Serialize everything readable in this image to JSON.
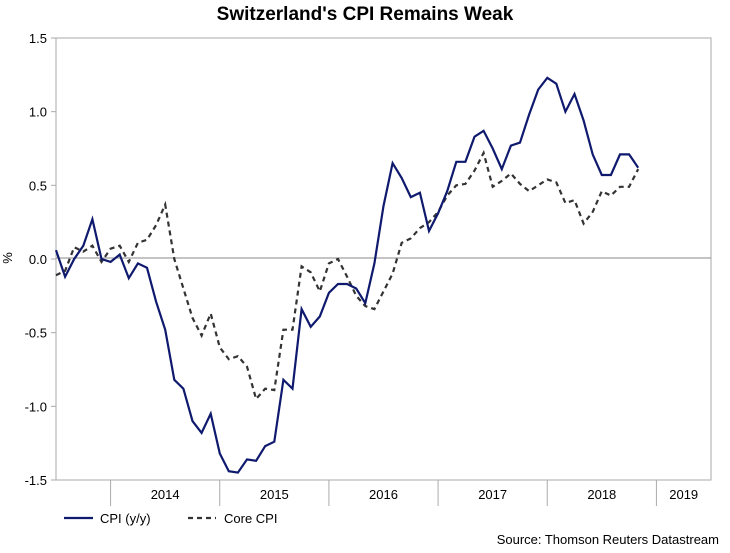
{
  "chart_data": {
    "type": "line",
    "title": "Switzerland's CPI Remains Weak",
    "ylabel": "%",
    "xlabel": "",
    "ylim": [
      -1.5,
      1.5
    ],
    "y_ticks": [
      "1.5",
      "1.0",
      "0.5",
      "0.0",
      "-0.5",
      "-1.0",
      "-1.5"
    ],
    "y_tick_values": [
      1.5,
      1.0,
      0.5,
      0.0,
      -0.5,
      -1.0,
      -1.5
    ],
    "x_labels": [
      "2014",
      "2015",
      "2016",
      "2017",
      "2018",
      "2019"
    ],
    "x_label_positions": [
      12,
      24,
      36,
      48,
      60,
      69
    ],
    "x_year_boundaries": [
      6,
      18,
      30,
      42,
      54,
      66
    ],
    "x_range": [
      0,
      72
    ],
    "zero_line": true,
    "source": "Source: Thomson Reuters Datastream",
    "series": [
      {
        "name": "CPI (y/y)",
        "color": "#0f1a6e",
        "style": "solid",
        "values": [
          0.06,
          -0.12,
          0.0,
          0.09,
          0.27,
          0.0,
          -0.02,
          0.03,
          -0.13,
          -0.03,
          -0.06,
          -0.29,
          -0.48,
          -0.82,
          -0.88,
          -1.1,
          -1.18,
          -1.05,
          -1.32,
          -1.44,
          -1.45,
          -1.36,
          -1.37,
          -1.27,
          -1.24,
          -0.82,
          -0.88,
          -0.34,
          -0.46,
          -0.39,
          -0.23,
          -0.17,
          -0.17,
          -0.2,
          -0.3,
          -0.03,
          0.36,
          0.65,
          0.55,
          0.42,
          0.45,
          0.19,
          0.31,
          0.46,
          0.66,
          0.66,
          0.83,
          0.87,
          0.75,
          0.61,
          0.77,
          0.79,
          0.98,
          1.15,
          1.23,
          1.19,
          1.0,
          1.12,
          0.94,
          0.71,
          0.57,
          0.57,
          0.71,
          0.71,
          0.62
        ]
      },
      {
        "name": "Core CPI",
        "color": "#333333",
        "style": "dashed",
        "values": [
          -0.11,
          -0.08,
          0.08,
          0.05,
          0.09,
          -0.02,
          0.07,
          0.09,
          -0.02,
          0.11,
          0.13,
          0.23,
          0.37,
          0.0,
          -0.2,
          -0.4,
          -0.52,
          -0.37,
          -0.6,
          -0.68,
          -0.66,
          -0.73,
          -0.95,
          -0.88,
          -0.89,
          -0.48,
          -0.48,
          -0.05,
          -0.09,
          -0.22,
          -0.03,
          0.0,
          -0.12,
          -0.25,
          -0.32,
          -0.34,
          -0.22,
          -0.1,
          0.11,
          0.14,
          0.21,
          0.25,
          0.32,
          0.43,
          0.5,
          0.51,
          0.6,
          0.72,
          0.49,
          0.53,
          0.58,
          0.51,
          0.46,
          0.5,
          0.54,
          0.52,
          0.38,
          0.4,
          0.24,
          0.32,
          0.46,
          0.43,
          0.49,
          0.49,
          0.61
        ]
      }
    ]
  }
}
